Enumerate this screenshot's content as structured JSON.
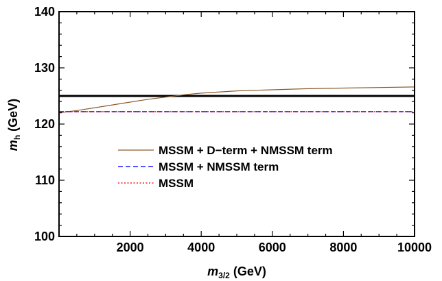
{
  "chart_data": {
    "type": "line",
    "title": "",
    "xlabel_main": "m",
    "xlabel_sub": "3/2",
    "xlabel_unit": " (GeV)",
    "ylabel_main": "m",
    "ylabel_sub": "h",
    "ylabel_unit": " (GeV)",
    "xlim": [
      0,
      10000
    ],
    "ylim": [
      100,
      140
    ],
    "xticks": [
      2000,
      4000,
      6000,
      8000,
      10000
    ],
    "yticks": [
      100,
      110,
      120,
      130,
      140
    ],
    "reference_line": {
      "y": 125,
      "color": "#000000"
    },
    "series": [
      {
        "name": "MSSM + D−term + NMSSM term",
        "color": "#8B5A2B",
        "style": "solid",
        "x": [
          0,
          500,
          1000,
          1500,
          2000,
          2500,
          3000,
          3500,
          4000,
          5000,
          6000,
          7000,
          8000,
          9000,
          10000
        ],
        "y": [
          122.0,
          122.4,
          122.9,
          123.4,
          123.9,
          124.4,
          124.8,
          125.2,
          125.5,
          125.9,
          126.1,
          126.3,
          126.4,
          126.5,
          126.6
        ]
      },
      {
        "name": "MSSM + NMSSM term",
        "color": "#1a1aff",
        "style": "dashed",
        "x": [
          0,
          10000
        ],
        "y": [
          122.2,
          122.2
        ]
      },
      {
        "name": "MSSM",
        "color": "#ff1a1a",
        "style": "dotted",
        "x": [
          0,
          10000
        ],
        "y": [
          122.2,
          122.2
        ]
      }
    ],
    "legend_position": "center"
  }
}
